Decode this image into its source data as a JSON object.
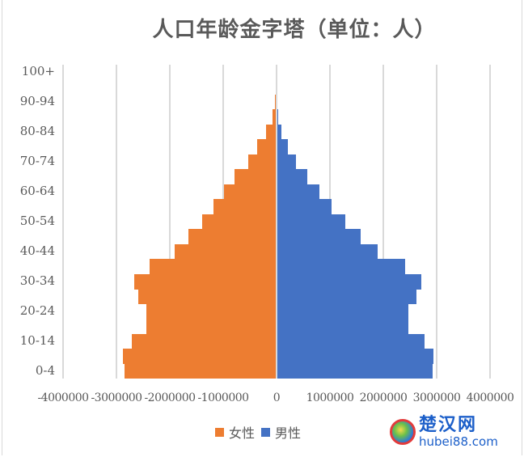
{
  "chart_data": {
    "type": "bar",
    "orientation": "horizontal",
    "subtype": "population-pyramid",
    "title": "人口年龄金字塔（单位：人）",
    "xlabel": "",
    "ylabel": "",
    "xlim": [
      -4000000,
      4000000
    ],
    "x_ticks": [
      "-4000000",
      "-3000000",
      "-2000000",
      "-1000000",
      "0",
      "1000000",
      "2000000",
      "3000000",
      "4000000"
    ],
    "x_tick_values": [
      -4000000,
      -3000000,
      -2000000,
      -1000000,
      0,
      1000000,
      2000000,
      3000000,
      4000000
    ],
    "grid": "vertical",
    "legend_position": "bottom",
    "categories": [
      "0-4",
      "5-9",
      "10-14",
      "15-19",
      "20-24",
      "25-29",
      "30-34",
      "35-39",
      "40-44",
      "45-49",
      "50-54",
      "55-59",
      "60-64",
      "65-69",
      "70-74",
      "75-79",
      "80-84",
      "85-89",
      "90-94",
      "95-99",
      "100+"
    ],
    "visible_category_labels": [
      "0-4",
      "10-14",
      "20-24",
      "30-34",
      "40-44",
      "50-54",
      "60-64",
      "70-74",
      "80-84",
      "90-94",
      "100+"
    ],
    "series": [
      {
        "name": "女性",
        "color": "#ED7D31",
        "values": [
          -2850000,
          -2880000,
          -2710000,
          -2440000,
          -2440000,
          -2590000,
          -2670000,
          -2380000,
          -1910000,
          -1650000,
          -1390000,
          -1180000,
          -980000,
          -790000,
          -530000,
          -360000,
          -200000,
          -80000,
          -30000,
          -10000,
          -2000
        ]
      },
      {
        "name": "男性",
        "color": "#4472C4",
        "values": [
          2920000,
          2940000,
          2770000,
          2470000,
          2470000,
          2620000,
          2710000,
          2410000,
          1890000,
          1580000,
          1290000,
          1030000,
          800000,
          580000,
          360000,
          210000,
          90000,
          30000,
          10000,
          3000,
          1000
        ]
      }
    ]
  },
  "legend": {
    "items": [
      {
        "label": "女性",
        "color": "#ED7D31"
      },
      {
        "label": "男性",
        "color": "#4472C4"
      }
    ]
  },
  "watermark": {
    "name_cn": "楚汉网",
    "domain": "hubei88.com"
  }
}
